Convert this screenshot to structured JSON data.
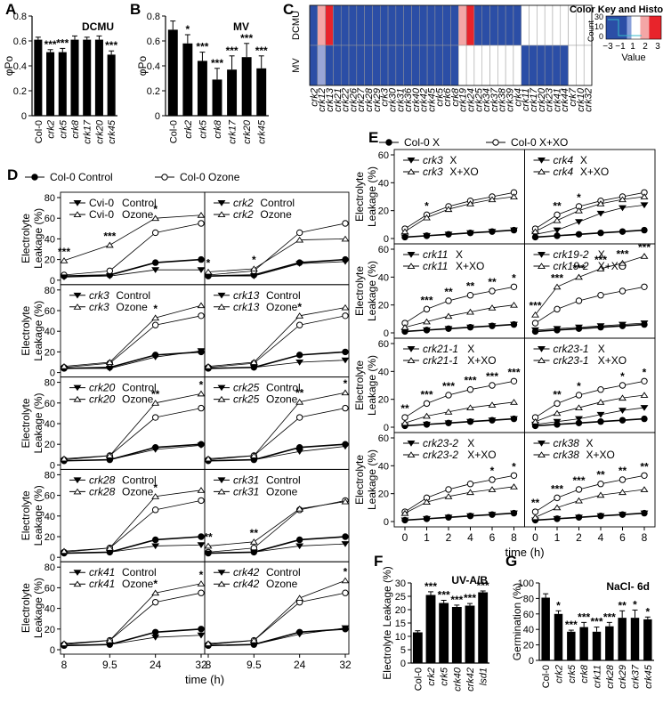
{
  "chart_data": [
    {
      "panel": "A",
      "type": "bar",
      "title": "DCMU",
      "ylabel": "φPo",
      "ylim": [
        0,
        0.8
      ],
      "yticks": [
        "0",
        "0.2",
        "0.4",
        "0.6",
        "0.8"
      ],
      "categories": [
        "Col-0",
        "crk2",
        "crk5",
        "crk8",
        "crk17",
        "crk20",
        "crk45"
      ],
      "values": [
        0.61,
        0.51,
        0.51,
        0.61,
        0.61,
        0.61,
        0.49
      ],
      "errors": [
        0.02,
        0.02,
        0.03,
        0.03,
        0.02,
        0.03,
        0.03
      ],
      "stars": [
        "",
        "***",
        "***",
        "",
        "",
        "",
        "***"
      ]
    },
    {
      "panel": "B",
      "type": "bar",
      "title": "MV",
      "ylabel": "φPo",
      "ylim": [
        0,
        0.8
      ],
      "yticks": [
        "0",
        "0.2",
        "0.4",
        "0.6",
        "0.8"
      ],
      "categories": [
        "Col-0",
        "crk2",
        "crk5",
        "crk8",
        "crk17",
        "crk20",
        "crk45"
      ],
      "values": [
        0.69,
        0.58,
        0.44,
        0.29,
        0.37,
        0.47,
        0.38
      ],
      "errors": [
        0.07,
        0.07,
        0.07,
        0.09,
        0.11,
        0.11,
        0.1
      ],
      "stars": [
        "",
        "*",
        "***",
        "***",
        "***",
        "***",
        "***"
      ]
    },
    {
      "panel": "C",
      "type": "heatmap",
      "rows": [
        "DCMU φPo",
        "MV φPo"
      ],
      "columns": [
        "crk2",
        "crk12",
        "crk13",
        "crk21",
        "crk22",
        "crk26",
        "crk27",
        "crk28",
        "crk29",
        "crk3",
        "crk30",
        "crk31",
        "crk36",
        "crk40",
        "crk42",
        "crk45",
        "crk5",
        "crk6",
        "crk8",
        "crk19",
        "crk24",
        "crk25",
        "crk34",
        "crk37",
        "crk38",
        "crk39",
        "crk4",
        "crk11",
        "crk17",
        "crk20",
        "crk23",
        "crk41",
        "crk44",
        "crk7",
        "crk10",
        "crk32"
      ],
      "values": [
        [
          -2.5,
          1.2,
          3.2,
          -2.6,
          -2.6,
          -2.6,
          -2.6,
          -2.6,
          -2.6,
          -2.6,
          -2.6,
          -2.6,
          -2.6,
          -2.6,
          -2.6,
          -2.6,
          -2.6,
          -2.6,
          -2.6,
          1.0,
          3.2,
          -2.6,
          -2.6,
          -2.6,
          -2.6,
          -2.6,
          -2.6,
          null,
          null,
          null,
          null,
          null,
          null,
          null,
          null,
          null
        ],
        [
          -2.6,
          -1.0,
          -2.6,
          -2.6,
          -2.6,
          -2.6,
          -2.6,
          -2.6,
          -2.6,
          -2.6,
          -2.6,
          -2.6,
          -2.6,
          -2.6,
          -2.6,
          -2.6,
          -2.6,
          -2.6,
          -2.6,
          null,
          null,
          null,
          null,
          null,
          null,
          null,
          null,
          -2.6,
          -2.6,
          -2.6,
          -2.6,
          -2.6,
          -2.6,
          null,
          null,
          null
        ]
      ],
      "key": {
        "title": "Color Key and Histogram",
        "xlabel": "Value",
        "ylabel": "Count",
        "xticks": [
          "−3",
          "−1",
          "1",
          "2",
          "3"
        ],
        "yticks": [
          "0",
          "10",
          "30"
        ]
      },
      "colors": {
        "low": "#2b4ea6",
        "mid": "#ffffff",
        "high": "#e8242b"
      }
    },
    {
      "panel": "D",
      "type": "line",
      "xlabel": "time (h)",
      "ylabel": "Electrolyte Leakage (%)",
      "x": [
        8,
        9.5,
        24,
        32
      ],
      "xticks": [
        "8",
        "9.5",
        "24",
        "32"
      ],
      "ylim": [
        0,
        80
      ],
      "yticks": [
        "0",
        "20",
        "40",
        "60",
        "80"
      ],
      "legend": [
        "Col-0 Control",
        "Col-0 Ozone"
      ],
      "reference": {
        "control": [
          4,
          5,
          17,
          20
        ],
        "treated": [
          5,
          9,
          46,
          55
        ]
      },
      "subpanels": [
        {
          "mutant": "Cvi-0",
          "suffix": "Control",
          "suffix2": "Ozone",
          "control": [
            3,
            4,
            10,
            10
          ],
          "treated": [
            19,
            34,
            60,
            63
          ],
          "annotations": [
            {
              "x": 8,
              "text": "***"
            },
            {
              "x": 9.5,
              "text": "***"
            },
            {
              "x": 24,
              "text": "*"
            }
          ]
        },
        {
          "mutant": "crk2",
          "suffix": "Control",
          "suffix2": "Ozone",
          "control": [
            4,
            4,
            16,
            18
          ],
          "treated": [
            8,
            11,
            39,
            40
          ],
          "annotations": [
            {
              "x": 8,
              "text": "*"
            },
            {
              "x": 9.5,
              "text": "*"
            }
          ]
        },
        {
          "mutant": "crk3",
          "suffix": "Control",
          "suffix2": "Ozone",
          "control": [
            4,
            4,
            15,
            21
          ],
          "treated": [
            6,
            10,
            53,
            65
          ],
          "annotations": [
            {
              "x": 24,
              "text": "*"
            }
          ]
        },
        {
          "mutant": "crk13",
          "suffix": "Control",
          "suffix2": "Ozone",
          "control": [
            4,
            5,
            10,
            12
          ],
          "treated": [
            6,
            10,
            55,
            63
          ],
          "annotations": [
            {
              "x": 24,
              "text": "*"
            }
          ]
        },
        {
          "mutant": "crk20",
          "suffix": "Control",
          "suffix2": "Ozone",
          "control": [
            4,
            5,
            15,
            19
          ],
          "treated": [
            6,
            9,
            60,
            69
          ],
          "annotations": [
            {
              "x": 24,
              "text": "**"
            },
            {
              "x": 32,
              "text": "*"
            }
          ]
        },
        {
          "mutant": "crk25",
          "suffix": "Control",
          "suffix2": "Ozone",
          "control": [
            4,
            5,
            13,
            18
          ],
          "treated": [
            6,
            9,
            61,
            70
          ],
          "annotations": [
            {
              "x": 24,
              "text": "**"
            },
            {
              "x": 32,
              "text": "*"
            }
          ]
        },
        {
          "mutant": "crk28",
          "suffix": "Control",
          "suffix2": "Ozone",
          "control": [
            4,
            5,
            11,
            12
          ],
          "treated": [
            6,
            9,
            59,
            65
          ],
          "annotations": [
            {
              "x": 24,
              "text": "*"
            }
          ]
        },
        {
          "mutant": "crk31",
          "suffix": "Control",
          "suffix2": "Ozone",
          "control": [
            4,
            5,
            11,
            13
          ],
          "treated": [
            11,
            15,
            47,
            54
          ],
          "annotations": [
            {
              "x": 8,
              "text": "**"
            },
            {
              "x": 9.5,
              "text": "**"
            }
          ]
        },
        {
          "mutant": "crk41",
          "suffix": "Control",
          "suffix2": "Ozone",
          "control": [
            4,
            5,
            12,
            14
          ],
          "treated": [
            6,
            9,
            55,
            64
          ],
          "annotations": [
            {
              "x": 24,
              "text": "*"
            },
            {
              "x": 32,
              "text": "*"
            }
          ]
        },
        {
          "mutant": "crk42",
          "suffix": "Control",
          "suffix2": "Ozone",
          "control": [
            4,
            5,
            15,
            21
          ],
          "treated": [
            6,
            9,
            50,
            67
          ],
          "annotations": [
            {
              "x": 32,
              "text": "*"
            }
          ]
        }
      ]
    },
    {
      "panel": "E",
      "type": "line",
      "xlabel": "time (h)",
      "ylabel": "Electrolyte Leakage (%)",
      "x": [
        0,
        1,
        2,
        4,
        6,
        8
      ],
      "xticks": [
        "0",
        "1",
        "2",
        "4",
        "6",
        "8"
      ],
      "ylim": [
        0,
        60
      ],
      "yticks": [
        "0",
        "20",
        "40",
        "60"
      ],
      "legend": [
        "Col-0 X",
        "Col-0 X+XO"
      ],
      "reference": {
        "control": [
          1,
          2,
          3,
          4,
          5,
          6
        ],
        "treated": [
          7,
          17,
          23,
          27,
          30,
          33
        ]
      },
      "subpanels": [
        {
          "mutant": "crk3",
          "suffix": "X",
          "suffix2": "X+XO",
          "control": [
            1,
            2,
            3,
            4,
            5,
            6
          ],
          "treated": [
            5,
            15,
            21,
            25,
            28,
            30
          ],
          "annotations": [
            {
              "x": 1,
              "text": "*"
            }
          ]
        },
        {
          "mutant": "crk4",
          "suffix": "X",
          "suffix2": "X+XO",
          "control": [
            3,
            6,
            12,
            18,
            22,
            24
          ],
          "treated": [
            5,
            13,
            20,
            25,
            28,
            30
          ],
          "annotations": [
            {
              "x": 1,
              "text": "**"
            },
            {
              "x": 2,
              "text": "*"
            }
          ]
        },
        {
          "mutant": "crk11",
          "suffix": "X",
          "suffix2": "X+XO",
          "control": [
            1,
            2,
            3,
            4,
            5,
            6
          ],
          "treated": [
            4,
            8,
            12,
            15,
            18,
            20
          ],
          "annotations": [
            {
              "x": 1,
              "text": "***"
            },
            {
              "x": 2,
              "text": "**"
            },
            {
              "x": 4,
              "text": "**"
            },
            {
              "x": 6,
              "text": "**"
            },
            {
              "x": 8,
              "text": "*"
            }
          ]
        },
        {
          "mutant": "crk19-2",
          "suffix": "X",
          "suffix2": "X+XO",
          "control": [
            2,
            3,
            4,
            5,
            6,
            7
          ],
          "treated": [
            13,
            33,
            40,
            46,
            50,
            55
          ],
          "annotations": [
            {
              "x": 0,
              "text": "***"
            },
            {
              "x": 1,
              "text": "***"
            },
            {
              "x": 2,
              "text": "***"
            },
            {
              "x": 4,
              "text": "***"
            },
            {
              "x": 6,
              "text": "***"
            },
            {
              "x": 8,
              "text": "***"
            }
          ]
        },
        {
          "mutant": "crk21-1",
          "suffix": "X",
          "suffix2": "X+XO",
          "control": [
            1,
            2,
            3,
            4,
            5,
            6
          ],
          "treated": [
            3,
            8,
            11,
            14,
            16,
            18
          ],
          "annotations": [
            {
              "x": 0,
              "text": "**"
            },
            {
              "x": 1,
              "text": "***"
            },
            {
              "x": 2,
              "text": "***"
            },
            {
              "x": 4,
              "text": "***"
            },
            {
              "x": 6,
              "text": "***"
            },
            {
              "x": 8,
              "text": "***"
            }
          ]
        },
        {
          "mutant": "crk23-1",
          "suffix": "X",
          "suffix2": "X+XO",
          "control": [
            2,
            4,
            6,
            9,
            12,
            14
          ],
          "treated": [
            4,
            10,
            14,
            18,
            21,
            23
          ],
          "annotations": [
            {
              "x": 1,
              "text": "**"
            },
            {
              "x": 2,
              "text": "*"
            },
            {
              "x": 6,
              "text": "*"
            },
            {
              "x": 8,
              "text": "*"
            }
          ]
        },
        {
          "mutant": "crk23-2",
          "suffix": "X",
          "suffix2": "X+XO",
          "control": [
            1,
            2,
            3,
            4,
            5,
            6
          ],
          "treated": [
            6,
            14,
            18,
            21,
            23,
            25
          ],
          "annotations": [
            {
              "x": 6,
              "text": "*"
            },
            {
              "x": 8,
              "text": "*"
            }
          ]
        },
        {
          "mutant": "crk38",
          "suffix": "X",
          "suffix2": "X+XO",
          "control": [
            1,
            2,
            3,
            4,
            5,
            6
          ],
          "treated": [
            3,
            10,
            15,
            19,
            21,
            23
          ],
          "annotations": [
            {
              "x": 0,
              "text": "**"
            },
            {
              "x": 1,
              "text": "***"
            },
            {
              "x": 2,
              "text": "***"
            },
            {
              "x": 4,
              "text": "**"
            },
            {
              "x": 6,
              "text": "**"
            },
            {
              "x": 8,
              "text": "**"
            }
          ]
        }
      ]
    },
    {
      "panel": "F",
      "type": "bar",
      "title": "UV-A/B",
      "ylabel": "Electrolyte Leakage (%)",
      "ylim": [
        0,
        30
      ],
      "yticks": [
        "0",
        "5",
        "10",
        "15",
        "20",
        "25",
        "30"
      ],
      "categories": [
        "Col-0",
        "crk2",
        "crk5",
        "crk40",
        "crk42",
        "lsd1"
      ],
      "values": [
        11.5,
        25.5,
        22.5,
        21,
        21.5,
        26.5
      ],
      "errors": [
        0.6,
        1.2,
        1.0,
        0.7,
        0.8,
        0.5
      ],
      "stars": [
        "",
        "***",
        "***",
        "***",
        "***",
        "***"
      ]
    },
    {
      "panel": "G",
      "type": "bar",
      "title": "NaCl- 6d",
      "ylabel": "Germination (%)",
      "ylim": [
        0,
        100
      ],
      "yticks": [
        "0",
        "20",
        "40",
        "60",
        "80",
        "100"
      ],
      "categories": [
        "Col-0",
        "crk2",
        "crk5",
        "crk8",
        "crk11",
        "crk28",
        "crk29",
        "crk37",
        "crk45"
      ],
      "values": [
        81,
        60,
        37,
        43,
        37,
        44,
        55,
        55,
        53
      ],
      "errors": [
        5,
        4,
        2,
        6,
        6,
        5,
        9,
        10,
        3
      ],
      "stars": [
        "",
        "*",
        "***",
        "***",
        "***",
        "***",
        "**",
        "*",
        "*"
      ]
    }
  ]
}
